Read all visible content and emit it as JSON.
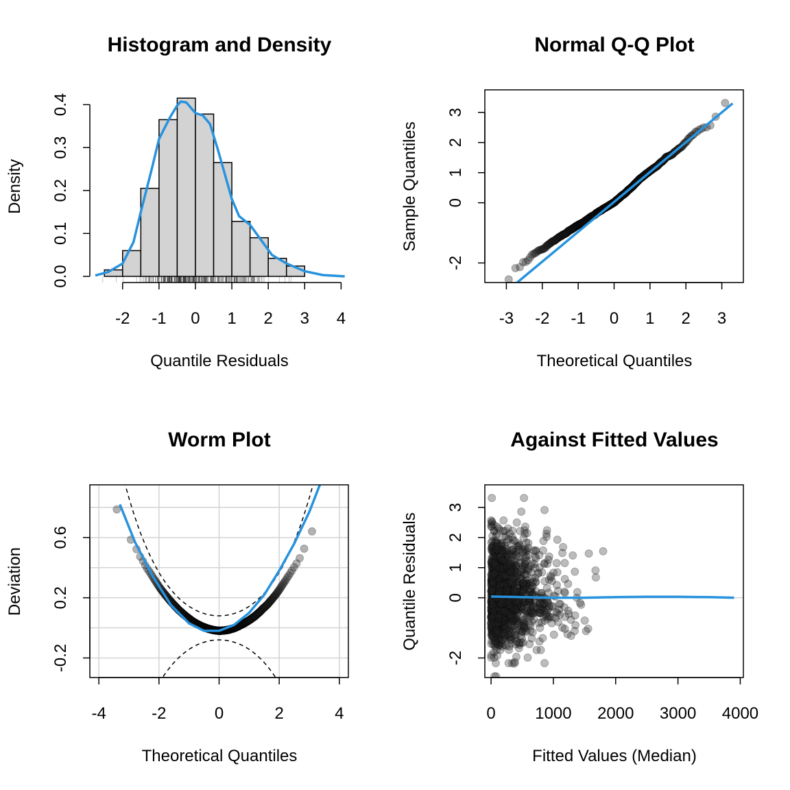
{
  "chart_data": [
    {
      "type": "histogram",
      "title": "Histogram and Density",
      "xlabel": "Quantile Residuals",
      "ylabel": "Density",
      "xlim": [
        -2.9,
        4.2
      ],
      "ylim": [
        0,
        0.42
      ],
      "xticks": [
        "-2",
        "-1",
        "0",
        "1",
        "2",
        "3",
        "4"
      ],
      "yticks": [
        "0.0",
        "0.1",
        "0.2",
        "0.3",
        "0.4"
      ],
      "bins": [
        {
          "x0": -2.5,
          "x1": -2.0,
          "density": 0.015
        },
        {
          "x0": -2.0,
          "x1": -1.5,
          "density": 0.06
        },
        {
          "x0": -1.5,
          "x1": -1.0,
          "density": 0.205
        },
        {
          "x0": -1.0,
          "x1": -0.5,
          "density": 0.365
        },
        {
          "x0": -0.5,
          "x1": 0.0,
          "density": 0.415
        },
        {
          "x0": 0.0,
          "x1": 0.5,
          "density": 0.378
        },
        {
          "x0": 0.5,
          "x1": 1.0,
          "density": 0.265
        },
        {
          "x0": 1.0,
          "x1": 1.5,
          "density": 0.128
        },
        {
          "x0": 1.5,
          "x1": 2.0,
          "density": 0.09
        },
        {
          "x0": 2.0,
          "x1": 2.5,
          "density": 0.042
        },
        {
          "x0": 2.5,
          "x1": 3.0,
          "density": 0.024
        }
      ],
      "density_curve": [
        [
          -2.75,
          0.002
        ],
        [
          -2.4,
          0.01
        ],
        [
          -2.0,
          0.03
        ],
        [
          -1.7,
          0.08
        ],
        [
          -1.5,
          0.15
        ],
        [
          -1.2,
          0.25
        ],
        [
          -1.0,
          0.32
        ],
        [
          -0.7,
          0.37
        ],
        [
          -0.5,
          0.398
        ],
        [
          -0.4,
          0.407
        ],
        [
          -0.25,
          0.405
        ],
        [
          -0.1,
          0.39
        ],
        [
          0.0,
          0.38
        ],
        [
          0.2,
          0.375
        ],
        [
          0.4,
          0.355
        ],
        [
          0.6,
          0.3
        ],
        [
          0.8,
          0.24
        ],
        [
          1.0,
          0.18
        ],
        [
          1.2,
          0.14
        ],
        [
          1.5,
          0.12
        ],
        [
          1.8,
          0.085
        ],
        [
          2.1,
          0.05
        ],
        [
          2.5,
          0.03
        ],
        [
          3.0,
          0.012
        ],
        [
          3.5,
          0.003
        ],
        [
          4.1,
          0.0
        ]
      ],
      "rug": "yes",
      "colors": {
        "bar_fill": "#d3d3d3",
        "curve": "#2792dd"
      }
    },
    {
      "type": "scatter",
      "title": "Normal Q-Q Plot",
      "xlabel": "Theoretical Quantiles",
      "ylabel": "Sample Quantiles",
      "xlim": [
        -3.6,
        3.6
      ],
      "ylim": [
        -2.65,
        3.75
      ],
      "xticks": [
        "-3",
        "-2",
        "-1",
        "0",
        "1",
        "2",
        "3"
      ],
      "yticks": [
        "-2",
        "0",
        "1",
        "2",
        "3"
      ],
      "reference_line": [
        [
          -2.7,
          -2.65
        ],
        [
          3.3,
          3.3
        ]
      ],
      "colors": {
        "points": "#222222",
        "line": "#2792dd"
      }
    },
    {
      "type": "scatter",
      "title": "Worm Plot",
      "xlabel": "Theoretical Quantiles",
      "ylabel": "Deviation",
      "xlim": [
        -4.3,
        4.3
      ],
      "ylim": [
        -0.33,
        0.95
      ],
      "xticks": [
        "-4",
        "-2",
        "0",
        "2",
        "4"
      ],
      "yticks": [
        "-0.2",
        "0.2",
        "0.6"
      ],
      "fit_curve": [
        [
          -3.3,
          0.82
        ],
        [
          -2.8,
          0.57
        ],
        [
          -2.2,
          0.34
        ],
        [
          -1.6,
          0.15
        ],
        [
          -1.0,
          0.03
        ],
        [
          -0.5,
          -0.02
        ],
        [
          0.0,
          -0.02
        ],
        [
          0.5,
          0.02
        ],
        [
          1.0,
          0.1
        ],
        [
          1.5,
          0.22
        ],
        [
          2.0,
          0.38
        ],
        [
          2.5,
          0.56
        ],
        [
          3.0,
          0.77
        ],
        [
          3.35,
          0.95
        ]
      ],
      "colors": {
        "points": "#222222",
        "line": "#2792dd",
        "bands": "#000000",
        "grid": "#d3d3d3"
      }
    },
    {
      "type": "scatter",
      "title": "Against Fitted Values",
      "xlabel": "Fitted Values (Median)",
      "ylabel": "Quantile Residuals",
      "xlim": [
        -100,
        4050
      ],
      "ylim": [
        -2.65,
        3.75
      ],
      "xticks": [
        "0",
        "1000",
        "2000",
        "3000",
        "4000"
      ],
      "yticks": [
        "-2",
        "0",
        "1",
        "2",
        "3"
      ],
      "smooth_curve": [
        [
          0,
          0.04
        ],
        [
          500,
          0.02
        ],
        [
          1000,
          0.0
        ],
        [
          1500,
          0.0
        ],
        [
          2000,
          0.02
        ],
        [
          2500,
          0.03
        ],
        [
          3000,
          0.03
        ],
        [
          3500,
          0.02
        ],
        [
          3900,
          0.0
        ]
      ],
      "colors": {
        "points": "#222222",
        "line": "#2792dd",
        "zero_line": "#d3d3d3"
      }
    }
  ]
}
